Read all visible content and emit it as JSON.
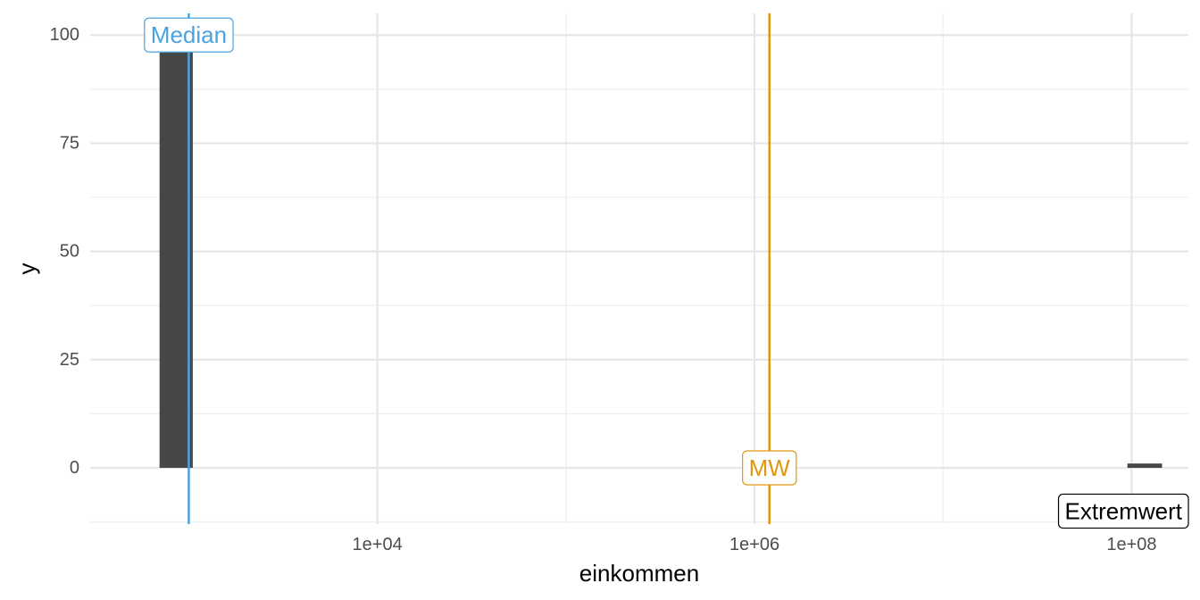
{
  "chart_data": {
    "type": "bar",
    "title": "",
    "xlabel": "einkommen",
    "ylabel": "y",
    "x_scale": "log10",
    "xlim": [
      300,
      200000000
    ],
    "ylim": [
      -13,
      105
    ],
    "grid": true,
    "x_ticks": [
      {
        "value": 10000,
        "label": "1e+04"
      },
      {
        "value": 1000000,
        "label": "1e+06"
      },
      {
        "value": 100000000,
        "label": "1e+08"
      }
    ],
    "y_ticks": [
      {
        "value": 0,
        "label": "0"
      },
      {
        "value": 25,
        "label": "25"
      },
      {
        "value": 50,
        "label": "50"
      },
      {
        "value": 75,
        "label": "75"
      },
      {
        "value": 100,
        "label": "100"
      }
    ],
    "bars": [
      {
        "x_min": 700,
        "x_max": 1050,
        "value": 96
      },
      {
        "x_min": 95000000,
        "x_max": 145000000,
        "value": 1
      }
    ],
    "reference_lines": [
      {
        "label": "Median",
        "x": 1000,
        "color": "#4aa3df"
      },
      {
        "label": "MW",
        "x": 1200000,
        "color": "#e0960f"
      }
    ],
    "annotations": [
      {
        "text": "Median",
        "x": 1000,
        "y": 100,
        "color": "#4aa3df"
      },
      {
        "text": "MW",
        "x": 1200000,
        "y": 0,
        "color": "#e0960f"
      },
      {
        "text": "Extremwert",
        "x": 100000000,
        "y": -10,
        "color": "#000000"
      }
    ],
    "colors": {
      "bar": "#474747",
      "background": "#ffffff"
    }
  }
}
